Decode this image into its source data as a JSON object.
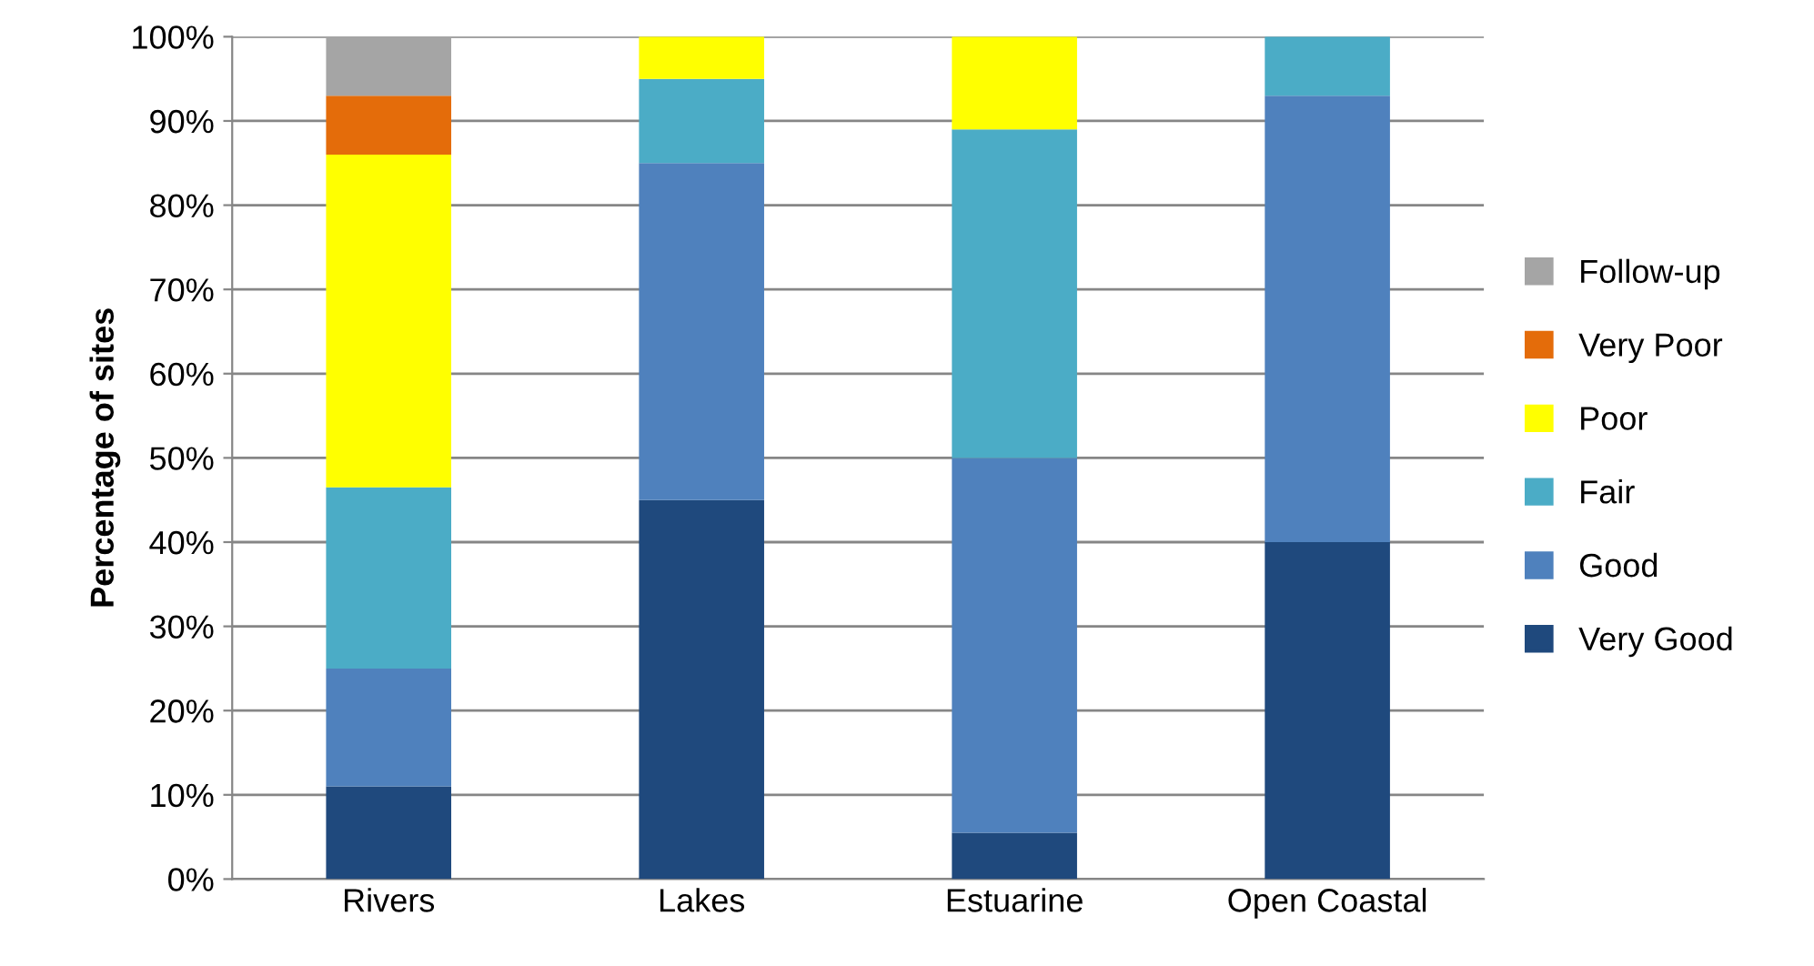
{
  "chart_data": {
    "type": "bar",
    "stacked": true,
    "ylabel": "Percentage of sites",
    "categories": [
      "Rivers",
      "Lakes",
      "Estuarine",
      "Open Coastal"
    ],
    "series": [
      {
        "name": "Very Good",
        "color": "#1f497d",
        "values": [
          11,
          45,
          5.5,
          40
        ]
      },
      {
        "name": "Good",
        "color": "#4f81bd",
        "values": [
          14,
          40,
          44.5,
          53
        ]
      },
      {
        "name": "Fair",
        "color": "#4bacc6",
        "values": [
          21.5,
          10,
          39,
          7
        ]
      },
      {
        "name": "Poor",
        "color": "#ffff00",
        "values": [
          39.5,
          5,
          11,
          0
        ]
      },
      {
        "name": "Very Poor",
        "color": "#e46c0a",
        "values": [
          7,
          0,
          0,
          0
        ]
      },
      {
        "name": "Follow-up",
        "color": "#a5a5a5",
        "values": [
          7,
          0,
          0,
          0
        ]
      }
    ],
    "ylim": [
      0,
      100
    ],
    "yticks": [
      {
        "value": 0,
        "label": "0%"
      },
      {
        "value": 10,
        "label": "10%"
      },
      {
        "value": 20,
        "label": "20%"
      },
      {
        "value": 30,
        "label": "30%"
      },
      {
        "value": 40,
        "label": "40%"
      },
      {
        "value": 50,
        "label": "50%"
      },
      {
        "value": 60,
        "label": "60%"
      },
      {
        "value": 70,
        "label": "70%"
      },
      {
        "value": 80,
        "label": "80%"
      },
      {
        "value": 90,
        "label": "90%"
      },
      {
        "value": 100,
        "label": "100%"
      }
    ],
    "grid": "y",
    "legend": "right"
  }
}
